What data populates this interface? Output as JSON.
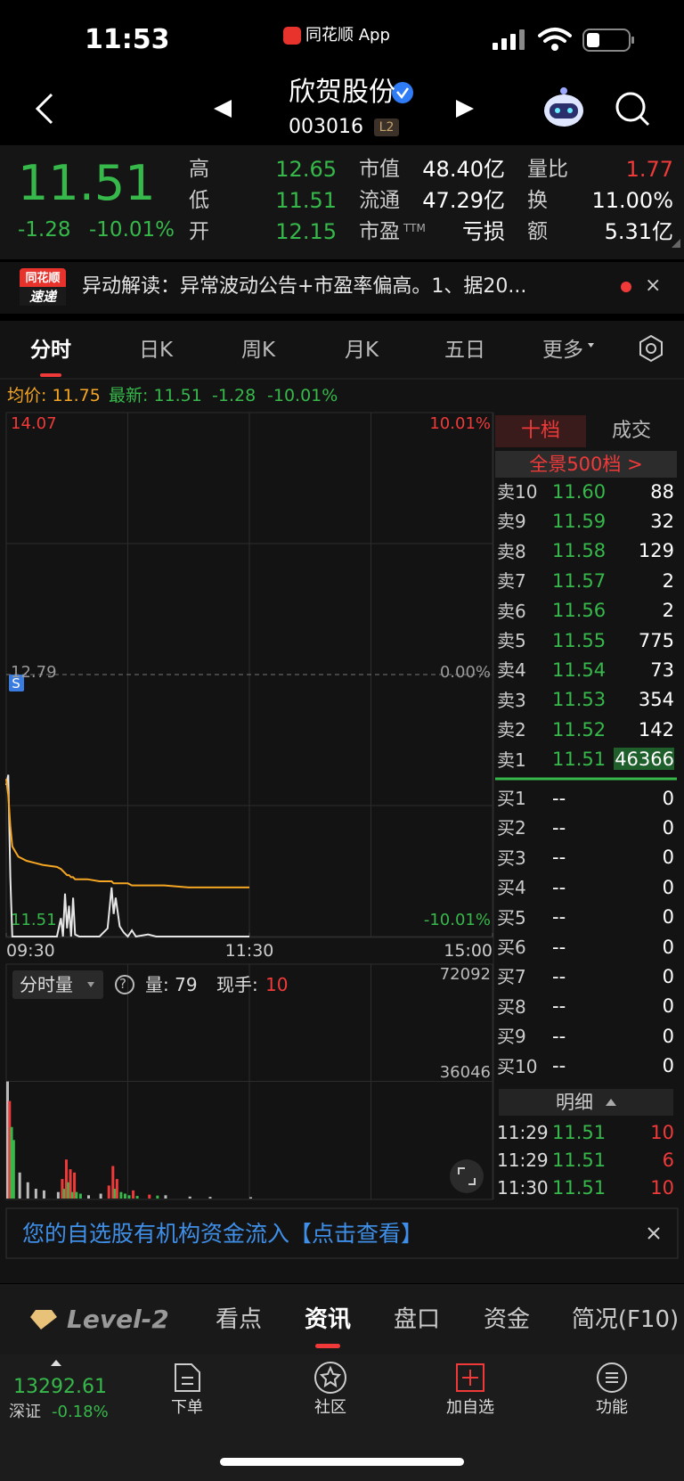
{
  "status_bar": {
    "time": "11:53",
    "app": "同花顺 App"
  },
  "nav": {
    "title": "欣贺股份",
    "code": "003016",
    "badge": "L2"
  },
  "quote": {
    "price": "11.51",
    "change": "-1.28",
    "change_pct": "-10.01%",
    "stats": [
      {
        "label": "高",
        "value": "12.65",
        "color": "#36b84a"
      },
      {
        "label": "低",
        "value": "11.51",
        "color": "#36b84a"
      },
      {
        "label": "开",
        "value": "12.15",
        "color": "#36b84a"
      },
      {
        "label": "市值",
        "value": "48.40亿",
        "color": "#ffffff"
      },
      {
        "label": "流通",
        "value": "47.29亿",
        "color": "#ffffff"
      },
      {
        "label": "市盈",
        "note": "TTM",
        "value": "亏损",
        "color": "#ffffff"
      },
      {
        "label": "量比",
        "value": "1.77",
        "color": "#f03a3a"
      },
      {
        "label": "换",
        "value": "11.00%",
        "color": "#ffffff"
      },
      {
        "label": "额",
        "value": "5.31亿",
        "color": "#ffffff"
      }
    ]
  },
  "alert": {
    "source": [
      "同花顺",
      "速递"
    ],
    "text": "异动解读：异常波动公告+市盈率偏高。1、据20..."
  },
  "tabs": [
    "分时",
    "日K",
    "周K",
    "月K",
    "五日",
    "更多"
  ],
  "summary": {
    "avg": "均价: 11.75",
    "last": "最新: 11.51",
    "change": "-1.28",
    "change_pct": "-10.01%"
  },
  "chart_data": [
    {
      "type": "line",
      "x": [
        0,
        1,
        2,
        3,
        6,
        10,
        14,
        18,
        25,
        27,
        28,
        29,
        30,
        31,
        32,
        33,
        34,
        36,
        40,
        46,
        50,
        52,
        53,
        54,
        56,
        58,
        60,
        62,
        64,
        70,
        74,
        78,
        90,
        100,
        120
      ],
      "series": [
        {
          "color": "#e6e6e6",
          "values": [
            12.25,
            12.3,
            11.8,
            11.51,
            11.51,
            11.51,
            11.51,
            11.51,
            11.51,
            11.6,
            11.51,
            11.72,
            11.55,
            11.66,
            11.51,
            11.7,
            11.52,
            11.51,
            11.51,
            11.51,
            11.55,
            11.75,
            11.62,
            11.7,
            11.56,
            11.53,
            11.51,
            11.54,
            11.51,
            11.52,
            11.51,
            11.51,
            11.51,
            11.51,
            11.51
          ]
        },
        {
          "color": "#f5a623",
          "values": [
            12.28,
            12.2,
            12.05,
            11.95,
            11.9,
            11.88,
            11.87,
            11.86,
            11.85,
            11.84,
            11.83,
            11.82,
            11.81,
            11.81,
            11.8,
            11.8,
            11.79,
            11.79,
            11.79,
            11.78,
            11.78,
            11.78,
            11.77,
            11.77,
            11.77,
            11.77,
            11.77,
            11.76,
            11.76,
            11.76,
            11.76,
            11.76,
            11.75,
            11.75,
            11.75
          ]
        }
      ],
      "xlim": [
        0,
        240
      ],
      "xticks": [
        {
          "value": 0,
          "label": "09:30"
        },
        {
          "value": 120,
          "label": "11:30"
        },
        {
          "value": 240,
          "label": "15:00"
        }
      ],
      "ylim": [
        11.51,
        14.07
      ],
      "yticks": [
        14.07,
        12.79,
        11.51
      ],
      "y2lim": [
        -10.01,
        10.01
      ],
      "y2ticks": [
        {
          "value": 10.01,
          "label": "10.01%"
        },
        {
          "value": 0,
          "label": "0.00%"
        },
        {
          "value": -10.01,
          "label": "-10.01%"
        }
      ],
      "marker": "S"
    },
    {
      "type": "bar",
      "title": "分时量",
      "volume": "量: 79",
      "hand_label": "现手:",
      "hand": "10",
      "x": [
        0,
        1,
        2,
        3,
        6,
        10,
        14,
        18,
        25,
        27,
        28,
        29,
        30,
        31,
        32,
        33,
        34,
        36,
        40,
        46,
        50,
        52,
        53,
        54,
        56,
        58,
        60,
        62,
        64,
        70,
        74,
        78,
        90,
        100,
        120
      ],
      "values": [
        36000,
        30000,
        22000,
        18000,
        8000,
        5000,
        3000,
        2500,
        2000,
        6000,
        3000,
        12000,
        5000,
        9000,
        2000,
        8000,
        2000,
        1500,
        1000,
        1500,
        4000,
        10000,
        3000,
        6000,
        2000,
        1500,
        1000,
        2500,
        800,
        1200,
        900,
        1000,
        600,
        500,
        400
      ],
      "ylim": [
        0,
        72092
      ],
      "yticks": [
        72092,
        36046
      ]
    }
  ],
  "order_book": {
    "tabs": [
      "十档",
      "成交"
    ],
    "panorama": "全景500档 >",
    "asks": [
      {
        "label": "卖10",
        "price": "11.60",
        "volume": "88"
      },
      {
        "label": "卖9",
        "price": "11.59",
        "volume": "32"
      },
      {
        "label": "卖8",
        "price": "11.58",
        "volume": "129"
      },
      {
        "label": "卖7",
        "price": "11.57",
        "volume": "2"
      },
      {
        "label": "卖6",
        "price": "11.56",
        "volume": "2"
      },
      {
        "label": "卖5",
        "price": "11.55",
        "volume": "775"
      },
      {
        "label": "卖4",
        "price": "11.54",
        "volume": "73"
      },
      {
        "label": "卖3",
        "price": "11.53",
        "volume": "354"
      },
      {
        "label": "卖2",
        "price": "11.52",
        "volume": "142"
      },
      {
        "label": "卖1",
        "price": "11.51",
        "volume": "46366"
      }
    ],
    "bids": [
      {
        "label": "买1",
        "price": "--",
        "volume": "0"
      },
      {
        "label": "买2",
        "price": "--",
        "volume": "0"
      },
      {
        "label": "买3",
        "price": "--",
        "volume": "0"
      },
      {
        "label": "买4",
        "price": "--",
        "volume": "0"
      },
      {
        "label": "买5",
        "price": "--",
        "volume": "0"
      },
      {
        "label": "买6",
        "price": "--",
        "volume": "0"
      },
      {
        "label": "买7",
        "price": "--",
        "volume": "0"
      },
      {
        "label": "买8",
        "price": "--",
        "volume": "0"
      },
      {
        "label": "买9",
        "price": "--",
        "volume": "0"
      },
      {
        "label": "买10",
        "price": "--",
        "volume": "0"
      }
    ],
    "detail_title": "明细",
    "trades": [
      {
        "time": "11:29",
        "price": "11.51",
        "volume": "10"
      },
      {
        "time": "11:29",
        "price": "11.51",
        "volume": "6"
      },
      {
        "time": "11:30",
        "price": "11.51",
        "volume": "10"
      }
    ]
  },
  "banner": {
    "text": "您的自选股有机构资金流入【点击查看】"
  },
  "bottom_tabs": [
    "Level-2",
    "看点",
    "资讯",
    "盘口",
    "资金",
    "简况(F10)"
  ],
  "index": {
    "value": "13292.61",
    "name": "深证",
    "change": "-0.18%"
  },
  "toolbar": [
    "下单",
    "社区",
    "加自选",
    "功能"
  ]
}
